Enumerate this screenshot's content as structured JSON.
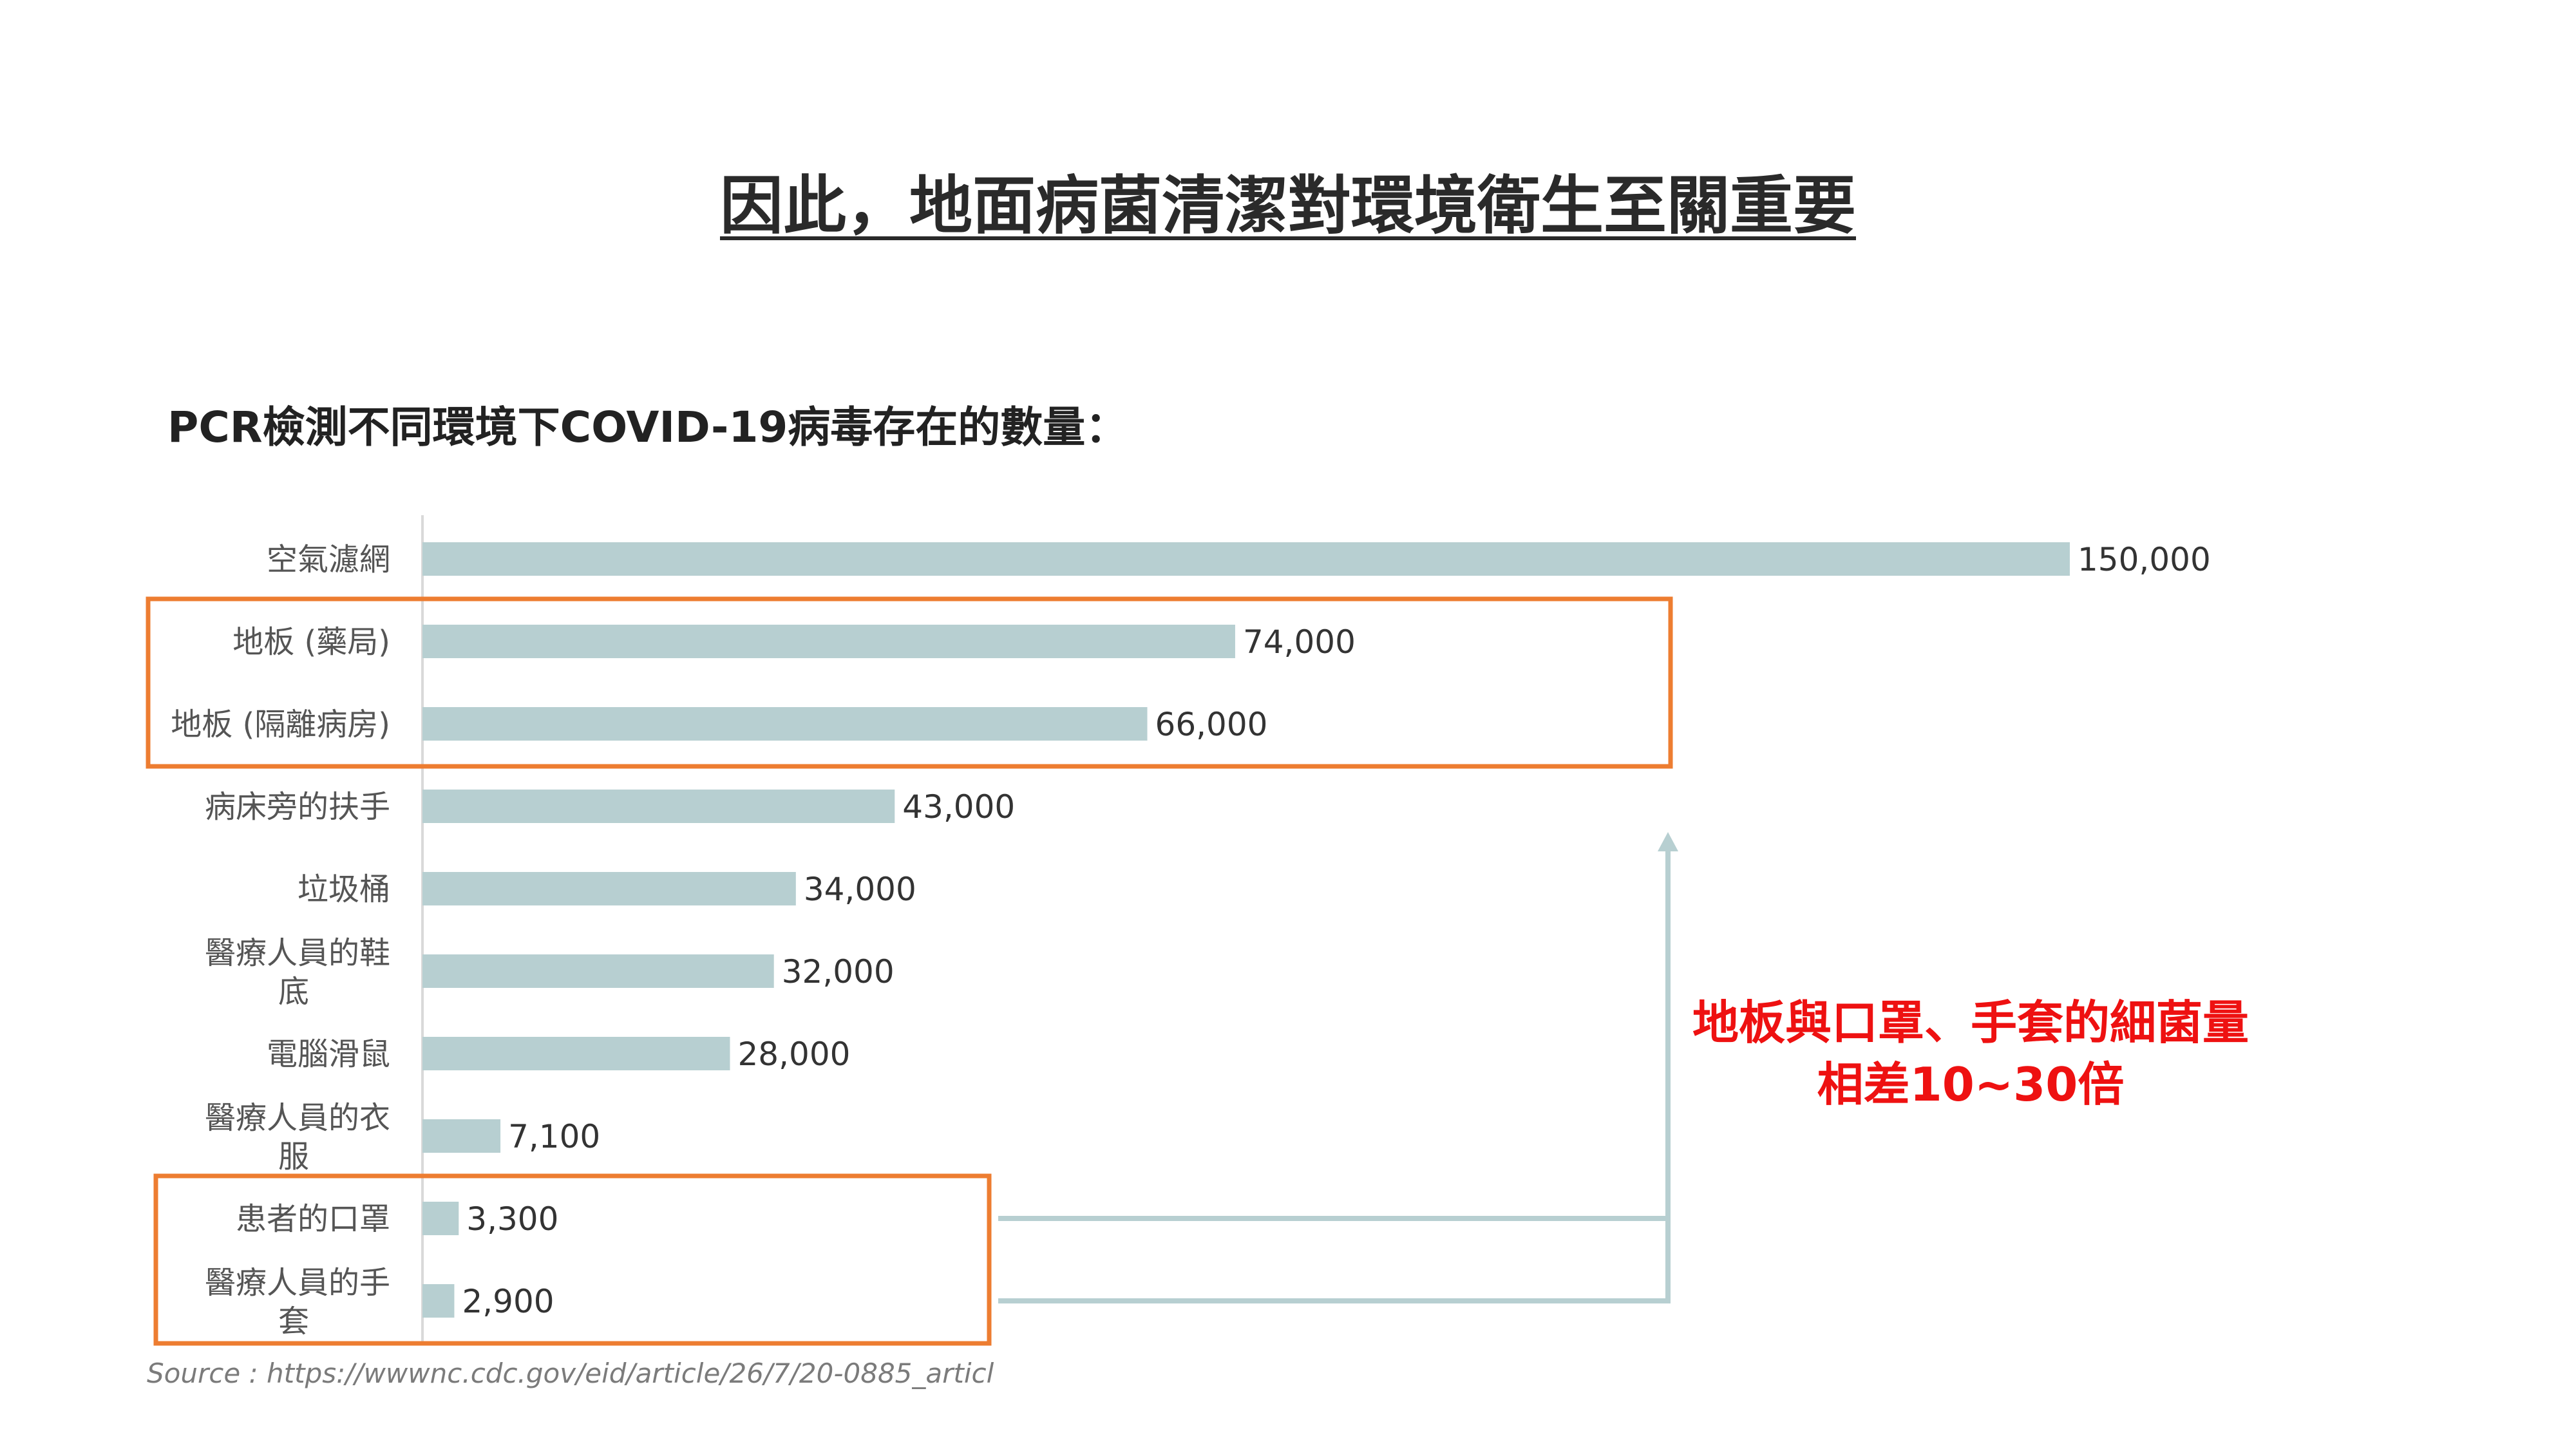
{
  "slide": {
    "title": "因此，地面病菌清潔對環境衛生至關重要",
    "chart_heading": "PCR檢測不同環境下COVID-19病毒存在的數量：",
    "callout_line1": "地板與口罩、手套的細菌量",
    "callout_line2": "相差10~30倍",
    "source": "Source : https://wwwnc.cdc.gov/eid/article/26/7/20-0885_articl"
  },
  "colors": {
    "bar": "#b7cfd1",
    "highlight_box": "#ed7d31",
    "callout_text": "#ee1111",
    "connector": "#b7cfd1",
    "axis": "#d9d9d9"
  },
  "chart_data": {
    "type": "bar",
    "orientation": "horizontal",
    "categories": [
      "空氣濾網",
      "地板 (藥局)",
      "地板 (隔離病房)",
      "病床旁的扶手",
      "垃圾桶",
      "醫療人員的鞋底",
      "電腦滑鼠",
      "醫療人員的衣服",
      "患者的口罩",
      "醫療人員的手套"
    ],
    "values": [
      150000,
      74000,
      66000,
      43000,
      34000,
      32000,
      28000,
      7100,
      3300,
      2900
    ],
    "value_labels": [
      "150,000",
      "74,000",
      "66,000",
      "43,000",
      "34,000",
      "32,000",
      "28,000",
      "7,100",
      "3,300",
      "2,900"
    ],
    "xlim": [
      0,
      150000
    ],
    "grid": false,
    "highlight_groups": [
      [
        "地板 (藥局)",
        "地板 (隔離病房)"
      ],
      [
        "患者的口罩",
        "醫療人員的手套"
      ]
    ]
  }
}
